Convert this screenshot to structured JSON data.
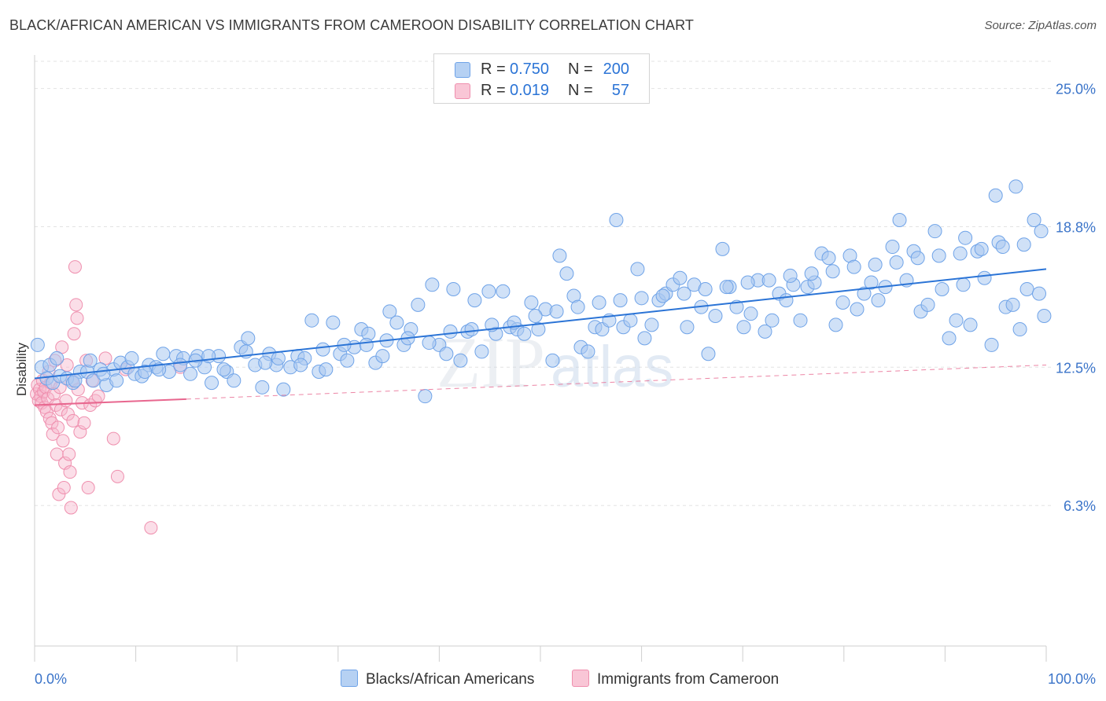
{
  "title": "BLACK/AFRICAN AMERICAN VS IMMIGRANTS FROM CAMEROON DISABILITY CORRELATION CHART",
  "source": "Source: ZipAtlas.com",
  "watermark": "ZIPatlas",
  "legend": {
    "rows": [
      {
        "r_label": "R =",
        "r_value": "0.750",
        "n_label": "N =",
        "n_value": "200",
        "color": "#6fa3e8"
      },
      {
        "r_label": "R =",
        "r_value": "0.019",
        "n_label": "N =",
        "n_value": "57",
        "color": "#f4a0bb"
      }
    ]
  },
  "bottom_legend": {
    "blue_label": "Blacks/African Americans",
    "pink_label": "Immigrants from Cameroon"
  },
  "colors": {
    "blue_fill": "#a9c9f1",
    "blue_stroke": "#6fa3e8",
    "blue_line": "#2b74d6",
    "pink_fill": "#f7b6cb",
    "pink_stroke": "#ef8fae",
    "pink_line": "#e8678f",
    "axis_text": "#3b74c9"
  },
  "chart_data": {
    "type": "scatter",
    "title": "BLACK/AFRICAN AMERICAN VS IMMIGRANTS FROM CAMEROON DISABILITY CORRELATION CHART",
    "xlabel": "",
    "ylabel": "Disability",
    "xlim": [
      0,
      100
    ],
    "ylim": [
      0,
      26.5
    ],
    "x_tick_labels": [
      "0.0%",
      "100.0%"
    ],
    "y_ticks": [
      6.3,
      12.5,
      18.8,
      25.0
    ],
    "y_tick_labels": [
      "6.3%",
      "12.5%",
      "18.8%",
      "25.0%"
    ],
    "grid": true,
    "series": [
      {
        "name": "Blacks/African Americans",
        "color": "#6fa3e8",
        "trend": {
          "x": [
            0,
            100
          ],
          "y": [
            12.0,
            16.9
          ]
        },
        "points": [
          [
            0.3,
            13.5
          ],
          [
            0.7,
            12.5
          ],
          [
            1.2,
            12.0
          ],
          [
            1.8,
            11.8
          ],
          [
            2.5,
            12.1
          ],
          [
            3.2,
            12.0
          ],
          [
            3.8,
            11.8
          ],
          [
            4.5,
            12.3
          ],
          [
            5.2,
            12.3
          ],
          [
            5.8,
            11.9
          ],
          [
            6.5,
            12.4
          ],
          [
            7.1,
            11.7
          ],
          [
            7.8,
            12.4
          ],
          [
            8.5,
            12.7
          ],
          [
            9.2,
            12.5
          ],
          [
            9.9,
            12.2
          ],
          [
            10.6,
            12.1
          ],
          [
            11.3,
            12.6
          ],
          [
            12.0,
            12.5
          ],
          [
            12.7,
            13.1
          ],
          [
            13.3,
            12.3
          ],
          [
            14.0,
            13.0
          ],
          [
            14.7,
            12.9
          ],
          [
            15.4,
            12.2
          ],
          [
            16.1,
            13.0
          ],
          [
            16.8,
            12.5
          ],
          [
            17.5,
            11.8
          ],
          [
            18.2,
            13.0
          ],
          [
            19.0,
            12.3
          ],
          [
            19.7,
            11.9
          ],
          [
            20.4,
            13.4
          ],
          [
            21.1,
            13.8
          ],
          [
            21.8,
            12.6
          ],
          [
            22.5,
            11.6
          ],
          [
            23.2,
            13.1
          ],
          [
            23.9,
            12.6
          ],
          [
            24.6,
            11.5
          ],
          [
            25.3,
            12.5
          ],
          [
            26.0,
            13.0
          ],
          [
            26.7,
            12.9
          ],
          [
            27.4,
            14.6
          ],
          [
            28.1,
            12.3
          ],
          [
            28.8,
            12.4
          ],
          [
            29.5,
            14.5
          ],
          [
            30.2,
            13.1
          ],
          [
            30.9,
            12.8
          ],
          [
            31.6,
            13.4
          ],
          [
            32.3,
            14.2
          ],
          [
            33.0,
            14.0
          ],
          [
            33.7,
            12.7
          ],
          [
            34.4,
            13.0
          ],
          [
            35.1,
            15.0
          ],
          [
            35.8,
            14.5
          ],
          [
            36.5,
            13.5
          ],
          [
            37.2,
            14.2
          ],
          [
            37.9,
            15.3
          ],
          [
            38.6,
            11.2
          ],
          [
            39.3,
            16.2
          ],
          [
            40.0,
            13.5
          ],
          [
            40.7,
            13.1
          ],
          [
            41.4,
            16.0
          ],
          [
            42.1,
            12.8
          ],
          [
            42.8,
            14.1
          ],
          [
            43.5,
            15.5
          ],
          [
            44.2,
            13.2
          ],
          [
            44.9,
            15.9
          ],
          [
            45.6,
            14.0
          ],
          [
            46.3,
            15.9
          ],
          [
            47.0,
            14.3
          ],
          [
            47.7,
            14.2
          ],
          [
            48.4,
            14.0
          ],
          [
            49.1,
            15.4
          ],
          [
            49.8,
            14.2
          ],
          [
            50.5,
            15.1
          ],
          [
            51.2,
            12.8
          ],
          [
            51.9,
            17.5
          ],
          [
            52.6,
            16.7
          ],
          [
            53.3,
            15.7
          ],
          [
            54.0,
            13.4
          ],
          [
            54.7,
            13.2
          ],
          [
            55.4,
            14.3
          ],
          [
            56.1,
            14.2
          ],
          [
            56.8,
            14.6
          ],
          [
            57.5,
            19.1
          ],
          [
            58.2,
            14.3
          ],
          [
            58.9,
            14.6
          ],
          [
            59.6,
            16.9
          ],
          [
            60.3,
            13.8
          ],
          [
            61.0,
            14.4
          ],
          [
            61.7,
            15.5
          ],
          [
            62.4,
            15.8
          ],
          [
            63.1,
            16.2
          ],
          [
            63.8,
            16.5
          ],
          [
            64.5,
            14.3
          ],
          [
            65.2,
            16.2
          ],
          [
            65.9,
            15.2
          ],
          [
            66.6,
            13.1
          ],
          [
            67.3,
            14.8
          ],
          [
            68.0,
            17.8
          ],
          [
            68.7,
            16.1
          ],
          [
            69.4,
            15.2
          ],
          [
            70.1,
            14.3
          ],
          [
            70.8,
            14.9
          ],
          [
            71.5,
            16.4
          ],
          [
            72.2,
            14.1
          ],
          [
            72.9,
            14.6
          ],
          [
            73.6,
            15.8
          ],
          [
            74.3,
            15.5
          ],
          [
            75.0,
            16.2
          ],
          [
            75.7,
            14.6
          ],
          [
            76.4,
            16.1
          ],
          [
            77.1,
            16.3
          ],
          [
            77.8,
            17.6
          ],
          [
            78.5,
            17.4
          ],
          [
            79.2,
            14.4
          ],
          [
            79.9,
            15.4
          ],
          [
            80.6,
            17.5
          ],
          [
            81.3,
            15.1
          ],
          [
            82.0,
            15.8
          ],
          [
            82.7,
            16.3
          ],
          [
            83.4,
            15.5
          ],
          [
            84.1,
            16.1
          ],
          [
            84.8,
            17.9
          ],
          [
            85.5,
            19.1
          ],
          [
            86.2,
            16.4
          ],
          [
            86.9,
            17.7
          ],
          [
            87.6,
            15.0
          ],
          [
            88.3,
            15.3
          ],
          [
            89.0,
            18.6
          ],
          [
            89.7,
            16.0
          ],
          [
            90.4,
            13.8
          ],
          [
            91.1,
            14.6
          ],
          [
            91.8,
            16.2
          ],
          [
            92.5,
            14.4
          ],
          [
            93.2,
            17.7
          ],
          [
            93.9,
            16.5
          ],
          [
            94.6,
            13.5
          ],
          [
            95.3,
            18.1
          ],
          [
            96.0,
            15.2
          ],
          [
            96.7,
            15.3
          ],
          [
            97.4,
            14.2
          ],
          [
            98.1,
            16.0
          ],
          [
            98.8,
            19.1
          ],
          [
            99.3,
            15.8
          ],
          [
            99.8,
            14.8
          ],
          [
            1.5,
            12.6
          ],
          [
            2.2,
            12.9
          ],
          [
            4.0,
            11.9
          ],
          [
            5.5,
            12.8
          ],
          [
            6.8,
            12.2
          ],
          [
            8.1,
            11.9
          ],
          [
            9.6,
            12.9
          ],
          [
            10.9,
            12.3
          ],
          [
            12.3,
            12.4
          ],
          [
            14.4,
            12.6
          ],
          [
            15.9,
            12.8
          ],
          [
            17.2,
            13.0
          ],
          [
            18.7,
            12.4
          ],
          [
            20.9,
            13.2
          ],
          [
            22.8,
            12.7
          ],
          [
            24.1,
            12.9
          ],
          [
            26.3,
            12.6
          ],
          [
            28.5,
            13.3
          ],
          [
            30.6,
            13.5
          ],
          [
            32.8,
            13.5
          ],
          [
            34.8,
            13.7
          ],
          [
            36.9,
            13.8
          ],
          [
            39.0,
            13.6
          ],
          [
            41.1,
            14.1
          ],
          [
            43.2,
            14.2
          ],
          [
            45.2,
            14.4
          ],
          [
            47.4,
            14.5
          ],
          [
            49.5,
            14.8
          ],
          [
            51.6,
            15.0
          ],
          [
            53.7,
            15.2
          ],
          [
            55.8,
            15.4
          ],
          [
            57.9,
            15.5
          ],
          [
            60.0,
            15.6
          ],
          [
            62.1,
            15.7
          ],
          [
            64.2,
            15.8
          ],
          [
            66.3,
            16.0
          ],
          [
            68.4,
            16.1
          ],
          [
            70.5,
            16.3
          ],
          [
            72.6,
            16.4
          ],
          [
            74.7,
            16.6
          ],
          [
            76.8,
            16.7
          ],
          [
            78.9,
            16.8
          ],
          [
            81.0,
            17.0
          ],
          [
            83.1,
            17.1
          ],
          [
            85.2,
            17.2
          ],
          [
            87.3,
            17.4
          ],
          [
            89.4,
            17.5
          ],
          [
            91.5,
            17.6
          ],
          [
            93.6,
            17.8
          ],
          [
            95.7,
            17.9
          ],
          [
            97.8,
            18.0
          ],
          [
            99.5,
            18.6
          ],
          [
            92.0,
            18.3
          ],
          [
            95.0,
            20.2
          ],
          [
            97.0,
            20.6
          ]
        ]
      },
      {
        "name": "Immigrants from Cameroon",
        "color": "#f4a0bb",
        "trend": {
          "x": [
            0,
            100
          ],
          "y": [
            10.8,
            12.6
          ]
        },
        "points": [
          [
            0.2,
            11.3
          ],
          [
            0.3,
            11.7
          ],
          [
            0.4,
            11.0
          ],
          [
            0.5,
            11.5
          ],
          [
            0.6,
            11.2
          ],
          [
            0.7,
            10.9
          ],
          [
            0.8,
            11.9
          ],
          [
            0.9,
            11.4
          ],
          [
            1.0,
            10.7
          ],
          [
            1.1,
            11.6
          ],
          [
            1.2,
            10.5
          ],
          [
            1.3,
            11.1
          ],
          [
            1.4,
            12.3
          ],
          [
            1.5,
            10.2
          ],
          [
            1.6,
            11.8
          ],
          [
            1.7,
            10.0
          ],
          [
            1.8,
            9.5
          ],
          [
            1.9,
            11.3
          ],
          [
            2.0,
            12.8
          ],
          [
            2.1,
            10.8
          ],
          [
            2.2,
            8.6
          ],
          [
            2.3,
            9.8
          ],
          [
            2.4,
            6.8
          ],
          [
            2.5,
            11.6
          ],
          [
            2.6,
            10.6
          ],
          [
            2.7,
            13.4
          ],
          [
            2.8,
            9.2
          ],
          [
            2.9,
            7.1
          ],
          [
            3.0,
            8.2
          ],
          [
            3.1,
            11.0
          ],
          [
            3.2,
            12.6
          ],
          [
            3.3,
            10.4
          ],
          [
            3.4,
            8.6
          ],
          [
            3.5,
            7.8
          ],
          [
            3.6,
            6.2
          ],
          [
            3.7,
            11.9
          ],
          [
            3.8,
            10.1
          ],
          [
            3.9,
            14.0
          ],
          [
            4.0,
            17.0
          ],
          [
            4.1,
            15.3
          ],
          [
            4.2,
            14.7
          ],
          [
            4.3,
            11.5
          ],
          [
            4.5,
            9.6
          ],
          [
            4.7,
            10.9
          ],
          [
            4.9,
            10.0
          ],
          [
            5.1,
            12.8
          ],
          [
            5.3,
            7.1
          ],
          [
            5.5,
            10.8
          ],
          [
            5.7,
            11.9
          ],
          [
            6.0,
            11.0
          ],
          [
            6.3,
            11.2
          ],
          [
            7.0,
            12.9
          ],
          [
            7.8,
            9.3
          ],
          [
            8.2,
            7.6
          ],
          [
            9.0,
            12.4
          ],
          [
            11.5,
            5.3
          ],
          [
            14.4,
            12.5
          ]
        ]
      }
    ]
  }
}
